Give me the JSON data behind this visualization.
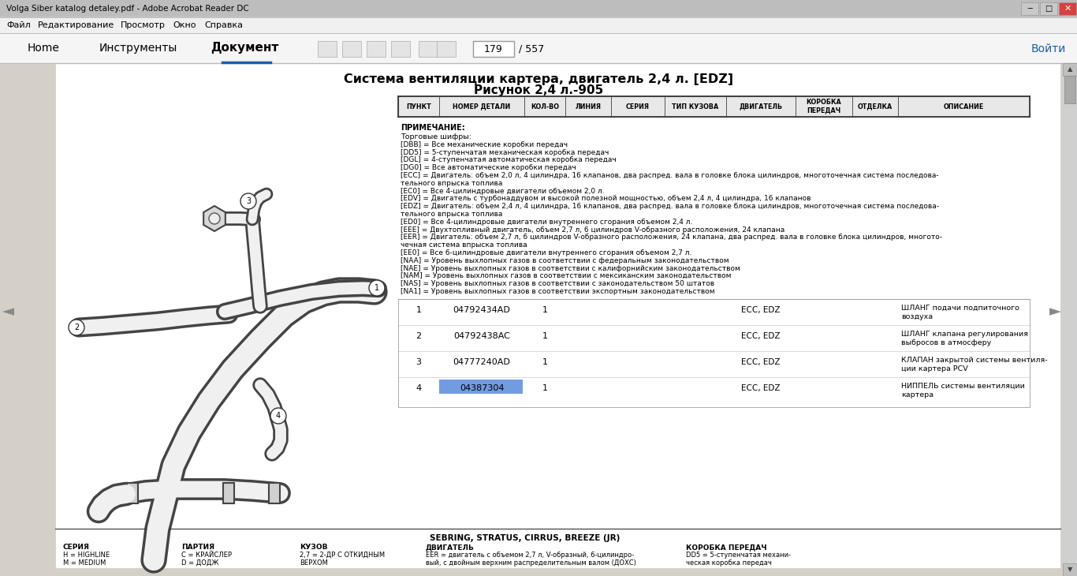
{
  "title_line1": "Система вентиляции картера, двигатель 2,4 л. [EDZ]",
  "title_line2": "Рисунок 2,4 л.-905",
  "window_title": "Volga Siber katalog detaley.pdf - Adobe Acrobat Reader DC",
  "menu_items": [
    "Файл",
    "Редактирование",
    "Просмотр",
    "Окно",
    "Справка"
  ],
  "nav_items": [
    "Home",
    "Инструменты",
    "Документ"
  ],
  "page_num": "179",
  "total_pages": "557",
  "table_headers": [
    "ПУНКТ",
    "НОМЕР ДЕТАЛИ",
    "КОЛ-ВО",
    "ЛИНИЯ",
    "СЕРИЯ",
    "ТИП КУЗОВА",
    "ДВИГАТЕЛЬ",
    "КОРОБКА\nПЕРЕДАЧ",
    "ОТДЕЛКА",
    "ОПИСАНИЕ"
  ],
  "note_header": "ПРИМЕЧАНИЕ:",
  "note_lines": [
    "Торговые шифры:",
    "[DBB] = Все механические коробки передач",
    "[DD5] = 5-ступенчатая механическая коробка передач",
    "[DGL] = 4-ступенчатая автоматическая коробка передач",
    "[DG0] = Все автоматические коробки передач",
    "[ECC] = Двигатель: объем 2,0 л, 4 цилиндра, 16 клапанов, два распред. вала в головке блока цилиндров, многоточечная система последова-",
    "тельного впрыска топлива",
    "[EC0] = Все 4-цилиндровые двигатели объемом 2,0 л.",
    "[EDV] = Двигатель с турбонаддувом и высокой полезной мощностью, объем 2,4 л, 4 цилиндра, 16 клапанов",
    "[EDZ] = Двигатель: объем 2,4 л, 4 цилиндра, 16 клапанов, два распред. вала в головке блока цилиндров, многоточечная система последова-",
    "тельного впрыска топлива",
    "[ED0] = Все 4-цилиндровые двигатели внутреннего сгорания объемом 2,4 л.",
    "[EEE] = Двухтопливный двигатель, объем 2,7 л, 6 цилиндров V-образного расположения, 24 клапана",
    "[EER] = Двигатель: объем 2,7 л, 6 цилиндров V-образного расположения, 24 клапана, два распред. вала в головке блока цилиндров, многото-",
    "чечная система впрыска топлива",
    "[EE0] = Все 6-цилиндровые двигатели внутреннего сгорания объемом 2,7 л.",
    "[NAA] = Уровень выхлопных газов в соответствии с федеральным законодательством",
    "[NAE] = Уровень выхлопных газов в соответствии с калифорнийским законодательством",
    "[NAM] = Уровень выхлопных газов в соответствии с мексиканским законодательством",
    "[NAS] = Уровень выхлопных газов в соответствии с законодательством 50 штатов",
    "[NA1] = Уровень выхлопных газов в соответствии экспортным законодательством"
  ],
  "parts": [
    {
      "num": "1",
      "part_num": "04792434AD",
      "qty": "1",
      "series": "ECC, EDZ",
      "description": "ШЛАНГ подачи подпиточного\nвоздуха"
    },
    {
      "num": "2",
      "part_num": "04792438AC",
      "qty": "1",
      "series": "ECC, EDZ",
      "description": "ШЛАНГ клапана регулирования\nвыбросов в атмосферу"
    },
    {
      "num": "3",
      "part_num": "04777240AD",
      "qty": "1",
      "series": "ECC, EDZ",
      "description": "КЛАПАН закрытой системы вентиля-\nции картера PCV"
    },
    {
      "num": "4",
      "part_num": "04387304",
      "qty": "1",
      "series": "ECC, EDZ",
      "description": "НИППЕЛЬ системы вентиляции\nкартера"
    }
  ],
  "part4_highlight": true,
  "footer_header": "SEBRING, STRATUS, CIRRUS, BREEZE (JR)",
  "footer_col_labels": [
    "СЕРИЯ",
    "ПАРТИЯ",
    "КУЗОВ",
    "ДВИГАТЕЛЬ",
    "КОРОБКА ПЕРЕДАЧ"
  ],
  "footer_rows": [
    [
      "H = HIGHLINE",
      "C = КРАЙСЛЕР",
      "2,7 = 2-ДР С ОТКИДНЫМ",
      "EER = двигатель с объемом 2,7 л, V-образный, 6-цилиндро-",
      "DD5 = 5-ступенчатая механи-"
    ],
    [
      "M = MEDIUM",
      "D = ДОДЖ",
      "ВЕРХОМ",
      "вый, с двойным верхним распределительным валом (ДОХС)",
      "ческая коробка передач"
    ]
  ],
  "bg_color": "#d4d0c8",
  "page_bg": "#ffffff",
  "titlebar_bg": "#c0c0c0",
  "menubar_bg": "#f0f0f0",
  "toolbar_bg": "#f5f5f5"
}
